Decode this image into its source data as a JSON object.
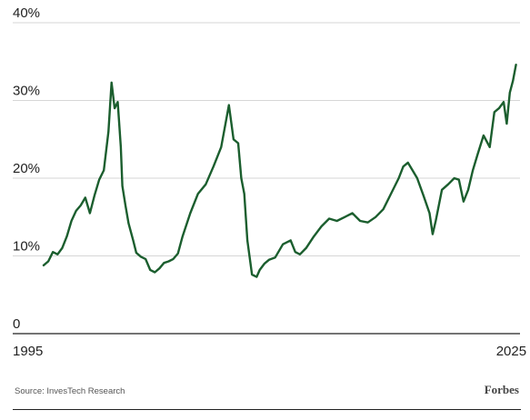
{
  "colors": {
    "line": "#1b5e2e",
    "grid": "#d6d6d6",
    "axis": "#222222"
  },
  "footer": {
    "source": "Source: InvesTech Research",
    "brand": "Forbes"
  },
  "chart_data": {
    "type": "line",
    "title": "",
    "xlabel": "",
    "ylabel": "",
    "ylim": [
      0,
      40
    ],
    "xlim": [
      1995,
      2025.8
    ],
    "y_ticks": [
      {
        "value": 0,
        "label": "0"
      },
      {
        "value": 10,
        "label": "10%"
      },
      {
        "value": 20,
        "label": "20%"
      },
      {
        "value": 30,
        "label": "30%"
      },
      {
        "value": 40,
        "label": "40%"
      }
    ],
    "x_ticks": [
      {
        "value": 1995,
        "label": "1995"
      },
      {
        "value": 2025,
        "label": "2025"
      }
    ],
    "grid": "horizontal",
    "series": [
      {
        "x": [
          1995.0,
          1995.3,
          1995.6,
          1995.9,
          1996.2,
          1996.5,
          1996.8,
          1997.1,
          1997.4,
          1997.7,
          1998.0,
          1998.3,
          1998.6,
          1998.9,
          1999.2,
          1999.4,
          1999.6,
          1999.8,
          2000.0,
          2000.1,
          2000.3,
          2000.5,
          2000.8,
          2001.0,
          2001.3,
          2001.6,
          2001.9,
          2002.2,
          2002.5,
          2002.8,
          2003.1,
          2003.4,
          2003.7,
          2004.0,
          2004.5,
          2005.0,
          2005.5,
          2006.0,
          2006.5,
          2007.0,
          2007.3,
          2007.6,
          2007.8,
          2008.0,
          2008.2,
          2008.5,
          2008.8,
          2009.0,
          2009.3,
          2009.6,
          2010.0,
          2010.5,
          2011.0,
          2011.3,
          2011.6,
          2012.0,
          2012.5,
          2013.0,
          2013.5,
          2014.0,
          2014.5,
          2015.0,
          2015.5,
          2016.0,
          2016.5,
          2017.0,
          2017.5,
          2018.0,
          2018.3,
          2018.6,
          2018.9,
          2019.2,
          2019.6,
          2020.0,
          2020.2,
          2020.4,
          2020.8,
          2021.2,
          2021.6,
          2021.9,
          2022.2,
          2022.5,
          2022.8,
          2023.1,
          2023.5,
          2023.9,
          2024.2,
          2024.5,
          2024.8,
          2025.0,
          2025.2,
          2025.4,
          2025.6
        ],
        "values": [
          8.8,
          9.3,
          10.5,
          10.2,
          11.0,
          12.5,
          14.5,
          15.8,
          16.5,
          17.5,
          15.5,
          17.8,
          19.8,
          21.0,
          26.0,
          32.3,
          29.0,
          29.8,
          24.0,
          19.0,
          16.5,
          14.2,
          12.0,
          10.4,
          9.9,
          9.6,
          8.2,
          7.9,
          8.4,
          9.1,
          9.3,
          9.6,
          10.3,
          12.5,
          15.5,
          18.0,
          19.2,
          21.5,
          24.0,
          29.4,
          25.0,
          24.5,
          20.0,
          18.0,
          12.0,
          7.6,
          7.3,
          8.2,
          9.0,
          9.5,
          9.8,
          11.5,
          12.0,
          10.5,
          10.2,
          11.0,
          12.5,
          13.8,
          14.8,
          14.5,
          15.0,
          15.5,
          14.5,
          14.3,
          15.0,
          16.0,
          18.0,
          20.0,
          21.5,
          22.0,
          21.0,
          20.0,
          17.8,
          15.5,
          12.8,
          14.5,
          18.5,
          19.2,
          20.0,
          19.8,
          17.0,
          18.5,
          21.0,
          23.0,
          25.5,
          24.0,
          28.5,
          29.0,
          29.8,
          27.0,
          31.0,
          32.5,
          34.6
        ]
      }
    ]
  }
}
